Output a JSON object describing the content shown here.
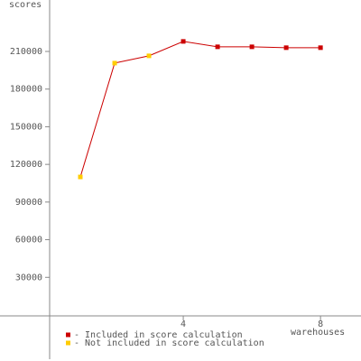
{
  "chart_data": {
    "type": "line",
    "y_label": "scores",
    "x_label": "warehouses",
    "x": [
      1,
      2,
      3,
      4,
      5,
      6,
      7,
      8
    ],
    "values": [
      110000,
      200700,
      206500,
      218000,
      213700,
      213700,
      213000,
      213000
    ],
    "line_color": "#cc0000",
    "point_colors": [
      "#ffcc00",
      "#ffcc00",
      "#ffcc00",
      "#cc0000",
      "#cc0000",
      "#cc0000",
      "#cc0000",
      "#cc0000"
    ],
    "xlim": [
      0,
      9.18
    ],
    "xticks": [
      4,
      8
    ],
    "ylim": [
      0,
      251000
    ],
    "yticks": [
      30000,
      60000,
      90000,
      120000,
      150000,
      180000,
      210000
    ],
    "legend": [
      {
        "label": "- Included in score calculation",
        "color": "#cc0000"
      },
      {
        "label": "- Not included in score calculation",
        "color": "#ffcc00"
      }
    ]
  }
}
